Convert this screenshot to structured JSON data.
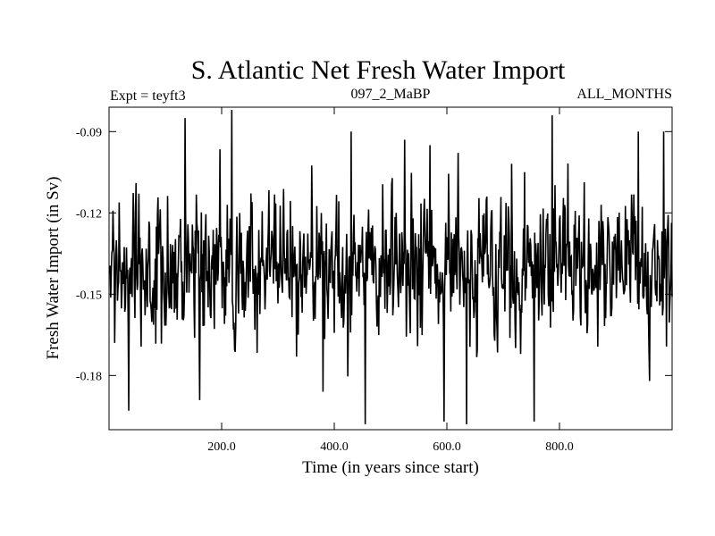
{
  "chart_data": {
    "type": "line",
    "title": "S. Atlantic Net Fresh Water Import",
    "subtitle_left": "Expt = teyft3",
    "subtitle_center": "097_2_MaBP",
    "subtitle_right": "ALL_MONTHS",
    "xlabel": "Time (in years since start)",
    "ylabel": "Fresh Water Import (in Sv)",
    "xlim": [
      0,
      1000
    ],
    "ylim": [
      -0.2,
      -0.081
    ],
    "x_ticks": [
      {
        "value": 200,
        "label": "200.0"
      },
      {
        "value": 400,
        "label": "400.0"
      },
      {
        "value": 600,
        "label": "600.0"
      },
      {
        "value": 800,
        "label": "800.0"
      }
    ],
    "y_ticks": [
      {
        "value": -0.09,
        "label": "-0.09"
      },
      {
        "value": -0.12,
        "label": "-0.12"
      },
      {
        "value": -0.15,
        "label": "-0.15"
      },
      {
        "value": -0.18,
        "label": "-0.18"
      }
    ],
    "series": [
      {
        "name": "Fresh Water Import",
        "color": "#000000",
        "x_start": 1,
        "x_step": 1,
        "mean": -0.14,
        "noise_std": 0.0125,
        "n_points": 1000,
        "peaks": [
          {
            "x": 135,
            "y": -0.085
          },
          {
            "x": 218,
            "y": -0.082
          },
          {
            "x": 430,
            "y": -0.09
          },
          {
            "x": 525,
            "y": -0.093
          },
          {
            "x": 570,
            "y": -0.095
          },
          {
            "x": 787,
            "y": -0.084
          },
          {
            "x": 940,
            "y": -0.09
          },
          {
            "x": 985,
            "y": -0.09
          }
        ],
        "troughs": [
          {
            "x": 35,
            "y": -0.193
          },
          {
            "x": 455,
            "y": -0.198
          },
          {
            "x": 595,
            "y": -0.197
          },
          {
            "x": 635,
            "y": -0.198
          },
          {
            "x": 755,
            "y": -0.197
          },
          {
            "x": 380,
            "y": -0.186
          },
          {
            "x": 960,
            "y": -0.182
          }
        ]
      }
    ]
  }
}
